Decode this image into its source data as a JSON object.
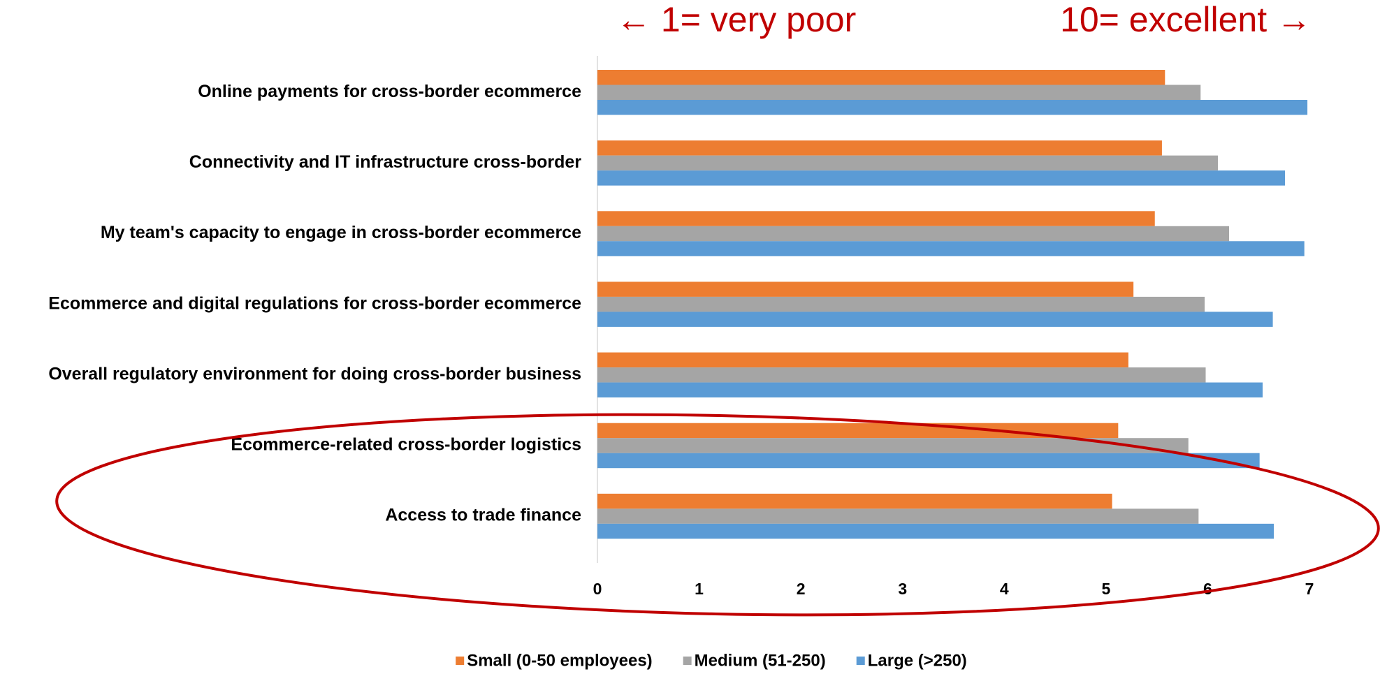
{
  "chart_data": {
    "type": "bar",
    "orientation": "horizontal",
    "annotations": [
      "←   1= very poor",
      "10= excellent →"
    ],
    "categories": [
      "Online payments for cross-border ecommerce",
      "Connectivity and IT infrastructure cross-border",
      "My team's capacity to engage in cross-border ecommerce",
      "Ecommerce and digital regulations for cross-border ecommerce",
      "Overall regulatory environment for doing cross-border business",
      "Ecommerce-related cross-border logistics",
      "Access to trade finance"
    ],
    "series": [
      {
        "name": "Small (0-50 employees)",
        "color": "#ed7d31",
        "values": [
          5.58,
          5.55,
          5.48,
          5.27,
          5.22,
          5.12,
          5.06
        ]
      },
      {
        "name": "Medium (51-250)",
        "color": "#a5a5a5",
        "values": [
          5.93,
          6.1,
          6.21,
          5.97,
          5.98,
          5.81,
          5.91
        ]
      },
      {
        "name": "Large (>250)",
        "color": "#5b9bd5",
        "values": [
          6.98,
          6.76,
          6.95,
          6.64,
          6.54,
          6.51,
          6.65
        ]
      }
    ],
    "xlim": [
      0,
      7
    ],
    "xticks": [
      0,
      1,
      2,
      3,
      4,
      5,
      6,
      7
    ],
    "grid": false,
    "legend": "bottom"
  }
}
